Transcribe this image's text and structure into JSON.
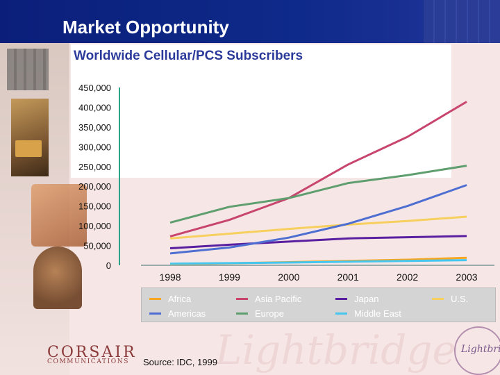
{
  "slide": {
    "title": "Market Opportunity",
    "source": "Source: IDC, 1999",
    "logo_text": "CORSAIR",
    "logo_subtext": "COMMUNICATIONS",
    "watermark": "Lightbridge",
    "right_logo": "Lightbrid"
  },
  "chart_data": {
    "type": "line",
    "title": "Worldwide Cellular/PCS Subscribers",
    "x": [
      "1998",
      "1999",
      "2000",
      "2001",
      "2002",
      "2003"
    ],
    "ylim": [
      0,
      450000
    ],
    "yticks": [
      "0",
      "50,000",
      "100,000",
      "150,000",
      "200,000",
      "250,000",
      "300,000",
      "350,000",
      "400,000",
      "450,000"
    ],
    "grid": false,
    "legend": "bottom",
    "series": [
      {
        "name": "Africa",
        "color": "#f5a623",
        "values": [
          3000,
          5000,
          8000,
          11000,
          14000,
          19000
        ]
      },
      {
        "name": "Asia Pacific",
        "color": "#c8456e",
        "values": [
          73000,
          115000,
          170000,
          255000,
          325000,
          414000
        ]
      },
      {
        "name": "Japan",
        "color": "#5a1fa0",
        "values": [
          43000,
          52000,
          60000,
          68000,
          71000,
          74000
        ]
      },
      {
        "name": "U.S.",
        "color": "#f7cf5e",
        "values": [
          68000,
          80000,
          92000,
          103000,
          112000,
          123000
        ]
      },
      {
        "name": "Americas",
        "color": "#4e6fd1",
        "values": [
          30000,
          45000,
          70000,
          105000,
          150000,
          203000
        ]
      },
      {
        "name": "Europe",
        "color": "#5f9e6e",
        "values": [
          108000,
          148000,
          170000,
          208000,
          228000,
          252000
        ]
      },
      {
        "name": "Middle East",
        "color": "#44c6ef",
        "values": [
          4000,
          5500,
          7000,
          9000,
          11000,
          13000
        ]
      }
    ]
  }
}
